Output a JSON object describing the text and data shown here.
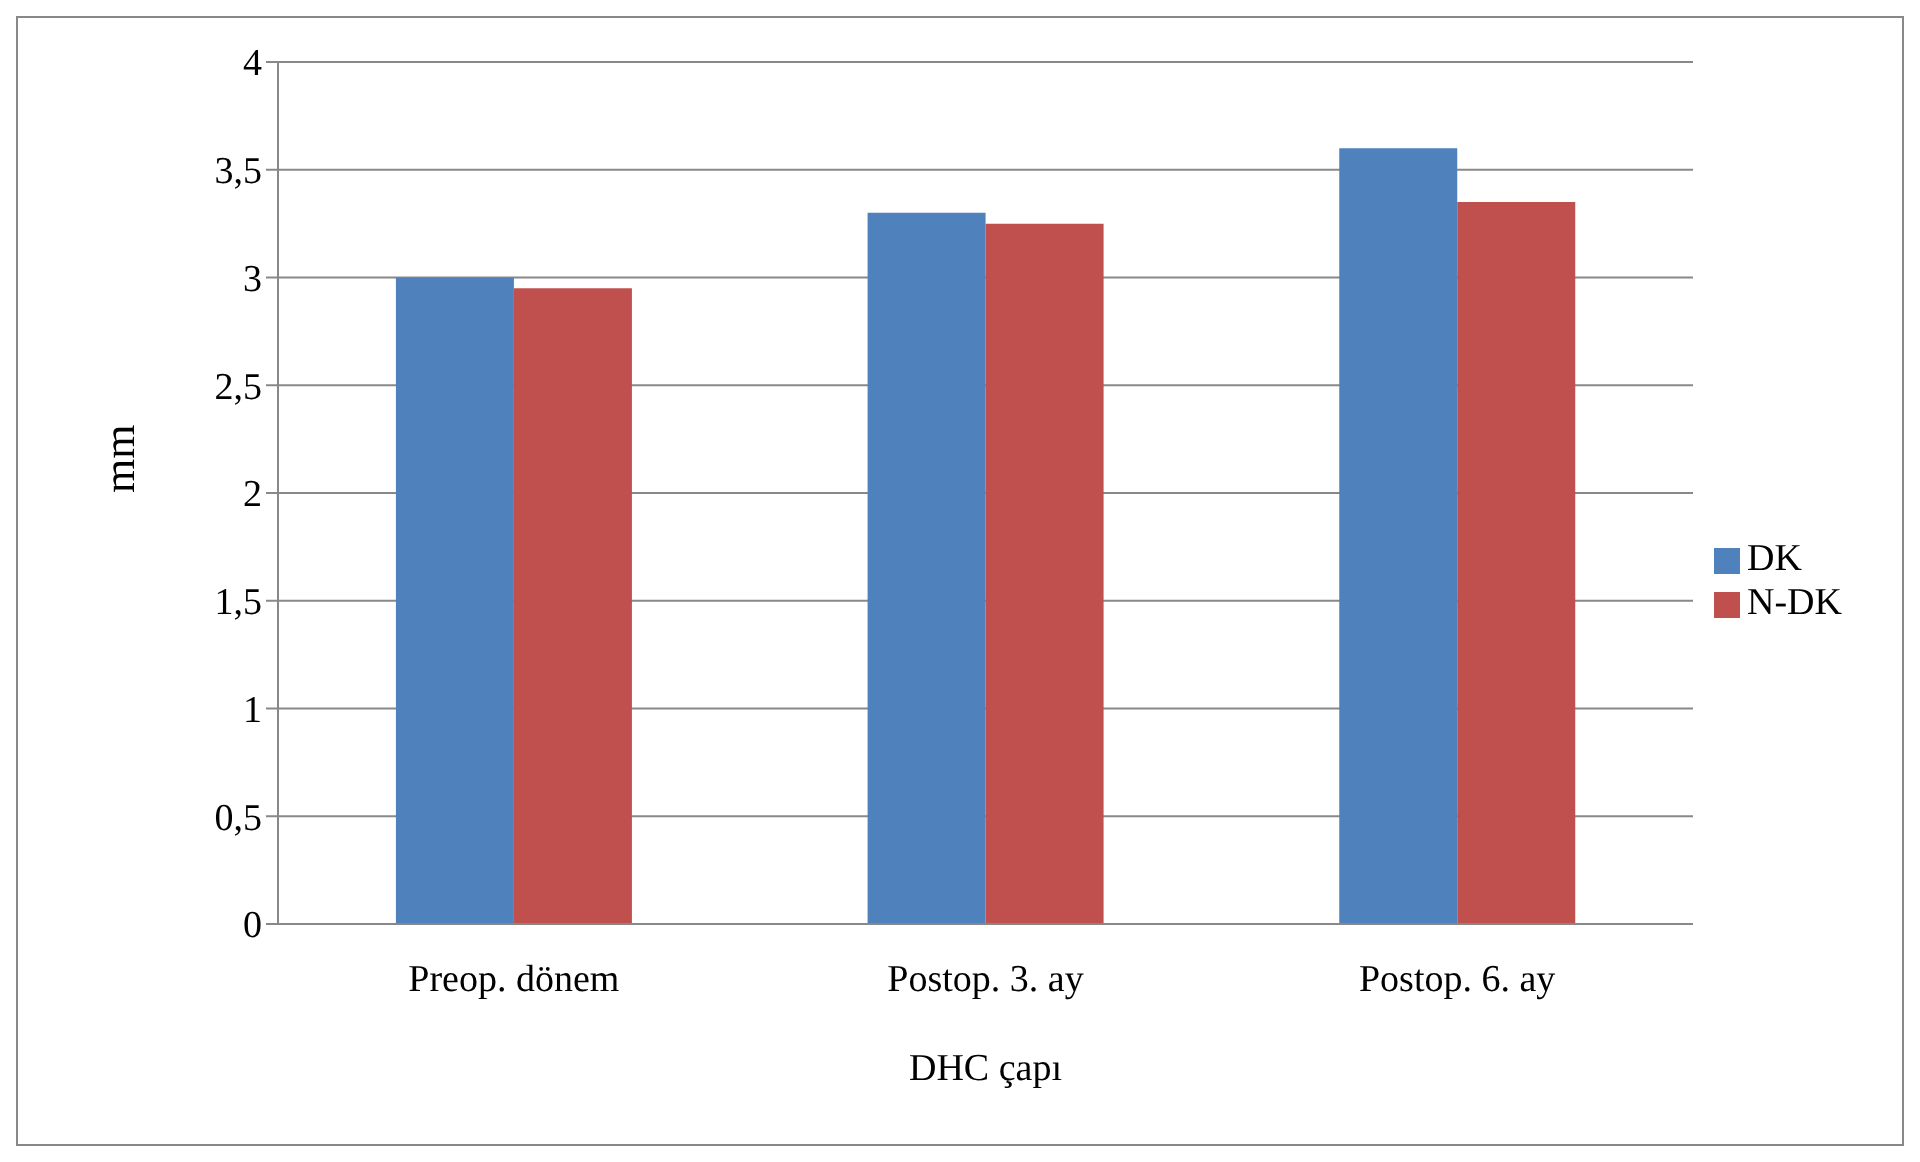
{
  "chart_data": {
    "type": "bar",
    "xlabel": "DHC çapı",
    "ylabel": "mm",
    "categories": [
      "Preop. dönem",
      "Postop. 3. ay",
      "Postop. 6. ay"
    ],
    "series": [
      {
        "name": "DK",
        "color": "#4f81bd",
        "values": [
          3.0,
          3.3,
          3.6
        ]
      },
      {
        "name": "N-DK",
        "color": "#c0504d",
        "values": [
          2.95,
          3.25,
          3.35
        ]
      }
    ],
    "ylim": [
      0,
      4
    ],
    "yticks": [
      0,
      {
        "value": 0.5,
        "label": "0,5"
      },
      1,
      {
        "value": 1.5,
        "label": "1,5"
      },
      2,
      {
        "value": 2.5,
        "label": "2,5"
      },
      3,
      {
        "value": 3.5,
        "label": "3,5"
      },
      4
    ],
    "grid": "y",
    "legend": "right"
  }
}
